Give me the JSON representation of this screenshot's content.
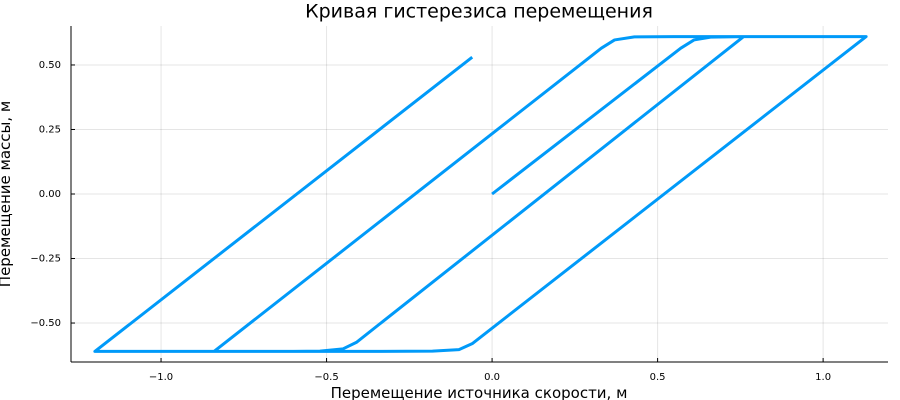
{
  "chart_data": {
    "type": "line",
    "title": "Кривая гистерезиса перемещения",
    "xlabel": "Перемещение источника скорости, м",
    "ylabel": "Перемещение массы, м",
    "x": [
      0,
      0.57,
      0.61,
      0.66,
      0.76,
      null,
      0.76,
      -0.41,
      -0.45,
      -0.52,
      -0.6,
      null,
      -0.84,
      0.33,
      0.37,
      0.43,
      0.55,
      1.13,
      -0.06,
      -0.1,
      -0.18,
      -0.35,
      -1.2,
      -0.06
    ],
    "series": [
      {
        "color": "#009af9",
        "values": [
          0,
          0.565,
          0.597,
          0.608,
          0.61,
          null,
          0.61,
          -0.575,
          -0.6,
          -0.609,
          -0.61,
          null,
          -0.61,
          0.565,
          0.597,
          0.609,
          0.61,
          0.61,
          -0.58,
          -0.603,
          -0.609,
          -0.61,
          -0.61,
          0.53
        ]
      }
    ],
    "xlim": [
      -1.272,
      1.196
    ],
    "ylim": [
      -0.651,
      0.651
    ],
    "xticks": [
      {
        "value": -1,
        "label": "−1.0"
      },
      {
        "value": -0.5,
        "label": "−0.5"
      },
      {
        "value": 0,
        "label": "0.0"
      },
      {
        "value": 0.5,
        "label": "0.5"
      },
      {
        "value": 1,
        "label": "1.0"
      }
    ],
    "yticks": [
      {
        "value": -0.5,
        "label": "−0.50"
      },
      {
        "value": -0.25,
        "label": "−0.25"
      },
      {
        "value": 0,
        "label": "0.00"
      },
      {
        "value": 0.25,
        "label": "0.25"
      },
      {
        "value": 0.5,
        "label": "0.50"
      }
    ],
    "grid": true
  }
}
